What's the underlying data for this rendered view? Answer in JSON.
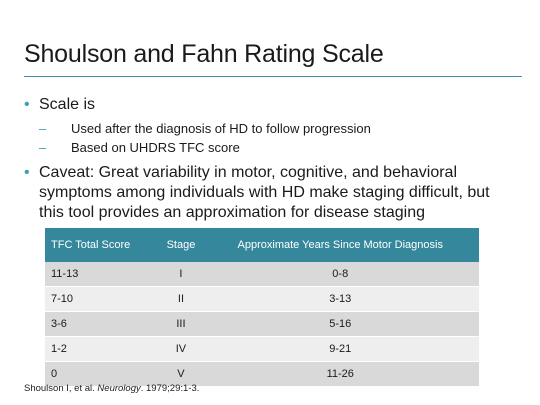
{
  "title": "Shoulson and Fahn Rating Scale",
  "bullets": [
    {
      "text": "Scale is",
      "subitems": [
        "Used after the diagnosis of HD to follow progression",
        "Based on UHDRS TFC score"
      ]
    },
    {
      "text": "Caveat: Great variability in motor, cognitive, and behavioral symptoms among individuals with HD make staging difficult, but this tool provides an approximation for disease staging"
    }
  ],
  "table": {
    "headers": [
      "TFC Total Score",
      "Stage",
      "Approximate Years Since Motor Diagnosis"
    ],
    "rows": [
      [
        "11-13",
        "I",
        "0-8"
      ],
      [
        "7-10",
        "II",
        "3-13"
      ],
      [
        "3-6",
        "III",
        "5-16"
      ],
      [
        "1-2",
        "IV",
        "9-21"
      ],
      [
        "0",
        "V",
        "11-26"
      ]
    ]
  },
  "citation": {
    "prefix": "Shoulson I, et al. ",
    "journal": "Neurology",
    "suffix": ". 1979;29:1-3."
  },
  "colors": {
    "accent": "#3aa0b5",
    "table_header": "#35879b",
    "row_dark": "#d9d9d9",
    "row_light": "#eeeeee"
  }
}
